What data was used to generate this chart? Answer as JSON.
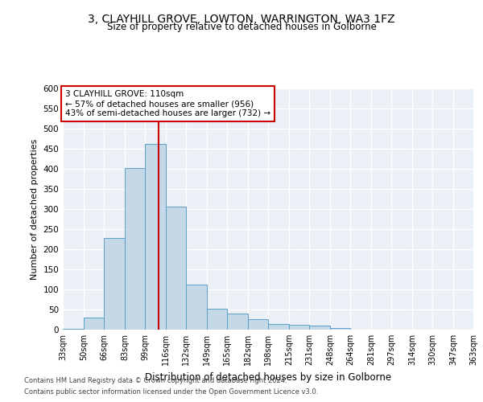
{
  "title1": "3, CLAYHILL GROVE, LOWTON, WARRINGTON, WA3 1FZ",
  "title2": "Size of property relative to detached houses in Golborne",
  "xlabel": "Distribution of detached houses by size in Golborne",
  "ylabel": "Number of detached properties",
  "footer1": "Contains HM Land Registry data © Crown copyright and database right 2024.",
  "footer2": "Contains public sector information licensed under the Open Government Licence v3.0.",
  "annotation_line1": "3 CLAYHILL GROVE: 110sqm",
  "annotation_line2": "← 57% of detached houses are smaller (956)",
  "annotation_line3": "43% of semi-detached houses are larger (732) →",
  "property_size": 110,
  "bin_edges": [
    33,
    50,
    66,
    83,
    99,
    116,
    132,
    149,
    165,
    182,
    198,
    215,
    231,
    248,
    264,
    281,
    297,
    314,
    330,
    347,
    363
  ],
  "bar_values": [
    3,
    30,
    228,
    402,
    462,
    307,
    112,
    52,
    40,
    27,
    14,
    13,
    10,
    5,
    1,
    1,
    0,
    0,
    1,
    0,
    3
  ],
  "bar_color": "#c5d8e8",
  "bar_edge_color": "#5a9ec8",
  "line_color": "#cc0000",
  "background_color": "#eaf0f6",
  "grid_color": "#ffffff",
  "ylim": [
    0,
    600
  ],
  "yticks": [
    0,
    50,
    100,
    150,
    200,
    250,
    300,
    350,
    400,
    450,
    500,
    550,
    600
  ]
}
